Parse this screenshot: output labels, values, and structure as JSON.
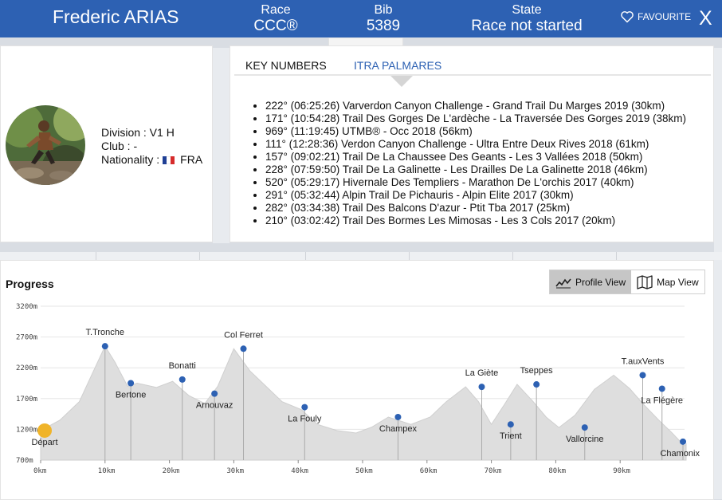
{
  "header": {
    "runner_name": "Frederic ARIAS",
    "race_label": "Race",
    "race_value": "CCC®",
    "bib_label": "Bib",
    "bib_value": "5389",
    "state_label": "State",
    "state_value": "Race not started",
    "favourite_label": "FAVOURITE",
    "close_label": "X"
  },
  "runner": {
    "division_text": "Division : V1 H",
    "club_text": "Club : -",
    "nationality_text": "Nationality :",
    "country": "FRA"
  },
  "tabs": [
    {
      "label": "KEY NUMBERS",
      "active": false
    },
    {
      "label": "ITRA PALMARES",
      "active": true
    }
  ],
  "palmares": [
    "222° (06:25:26) Varverdon Canyon Challenge - Grand Trail Du Marges 2019 (30km)",
    "171° (10:54:28) Trail Des Gorges De L'ardèche - La Traversée Des Gorges 2019 (38km)",
    "969° (11:19:45) UTMB® - Occ 2018 (56km)",
    "111° (12:28:36) Verdon Canyon Challenge - Ultra Entre Deux Rives 2018 (61km)",
    "157° (09:02:21) Trail De La Chaussee Des Geants - Les 3 Vallées 2018 (50km)",
    "228° (07:59:50) Trail De La Galinette - Les Drailles De La Galinette 2018 (46km)",
    "520° (05:29:17) Hivernale Des Templiers - Marathon De L'orchis 2017 (40km)",
    "291° (05:32:44) Alpin Trail De Pichauris - Alpin Elite 2017 (30km)",
    "282° (03:34:38) Trail Des Balcons D'azur - Ptit Tba 2017 (25km)",
    "210° (03:02:42) Trail Des Bormes Les Mimosas - Les 3 Cols 2017 (20km)"
  ],
  "progress": {
    "title": "Progress",
    "profile_view_label": "Profile View",
    "map_view_label": "Map View"
  },
  "colors": {
    "header_blue": "#2d61b3",
    "waypoint_blue": "#2d61b3",
    "start_marker": "#f0b429",
    "profile_fill": "#dedede"
  },
  "chart_data": {
    "type": "area",
    "title": "",
    "xlabel": "",
    "ylabel": "",
    "x_unit": "km",
    "y_unit": "m",
    "xlim": [
      0,
      100
    ],
    "ylim": [
      700,
      3200
    ],
    "x_ticks": [
      "0km",
      "10km",
      "20km",
      "30km",
      "40km",
      "50km",
      "60km",
      "70km",
      "80km",
      "90km"
    ],
    "y_ticks": [
      "700m",
      "1200m",
      "1700m",
      "2200m",
      "2700m",
      "3200m"
    ],
    "profile": [
      [
        0,
        1180
      ],
      [
        3,
        1350
      ],
      [
        6,
        1650
      ],
      [
        8,
        2100
      ],
      [
        10,
        2550
      ],
      [
        11.5,
        2300
      ],
      [
        13.5,
        1900
      ],
      [
        15,
        1950
      ],
      [
        18,
        1880
      ],
      [
        20.5,
        1980
      ],
      [
        23,
        1750
      ],
      [
        25.5,
        1620
      ],
      [
        27.5,
        1900
      ],
      [
        30,
        2510
      ],
      [
        32.5,
        2150
      ],
      [
        35,
        1900
      ],
      [
        37.5,
        1650
      ],
      [
        40.5,
        1520
      ],
      [
        43,
        1280
      ],
      [
        46,
        1180
      ],
      [
        49,
        1140
      ],
      [
        51.5,
        1240
      ],
      [
        54,
        1400
      ],
      [
        57.5,
        1280
      ],
      [
        60.5,
        1400
      ],
      [
        63,
        1650
      ],
      [
        66,
        1890
      ],
      [
        68,
        1650
      ],
      [
        70,
        1280
      ],
      [
        72,
        1600
      ],
      [
        74,
        1930
      ],
      [
        76.5,
        1650
      ],
      [
        78.5,
        1400
      ],
      [
        80.5,
        1230
      ],
      [
        83,
        1430
      ],
      [
        86,
        1850
      ],
      [
        89,
        2080
      ],
      [
        91.5,
        1860
      ],
      [
        93.5,
        1620
      ],
      [
        96,
        1350
      ],
      [
        98,
        1150
      ],
      [
        100,
        930
      ]
    ],
    "waypoints": [
      {
        "name": "Départ",
        "km": 0,
        "alt": 1180,
        "start": true
      },
      {
        "name": "T.Tronche",
        "km": 10,
        "alt": 2550
      },
      {
        "name": "Bertone",
        "km": 14,
        "alt": 1950
      },
      {
        "name": "Bonatti",
        "km": 22,
        "alt": 2010
      },
      {
        "name": "Arnouvaz",
        "km": 27,
        "alt": 1780
      },
      {
        "name": "Col Ferret",
        "km": 31.5,
        "alt": 2510
      },
      {
        "name": "La Fouly",
        "km": 41,
        "alt": 1560
      },
      {
        "name": "Champex",
        "km": 55.5,
        "alt": 1400
      },
      {
        "name": "La Giète",
        "km": 68.5,
        "alt": 1890
      },
      {
        "name": "Trient",
        "km": 73,
        "alt": 1280
      },
      {
        "name": "Tseppes",
        "km": 77,
        "alt": 1930
      },
      {
        "name": "Vallorcine",
        "km": 84.5,
        "alt": 1230
      },
      {
        "name": "T.auxVents",
        "km": 93.5,
        "alt": 2080
      },
      {
        "name": "La Flégère",
        "km": 96.5,
        "alt": 1860
      },
      {
        "name": "Chamonix",
        "km": 103,
        "alt": 1000
      }
    ]
  }
}
